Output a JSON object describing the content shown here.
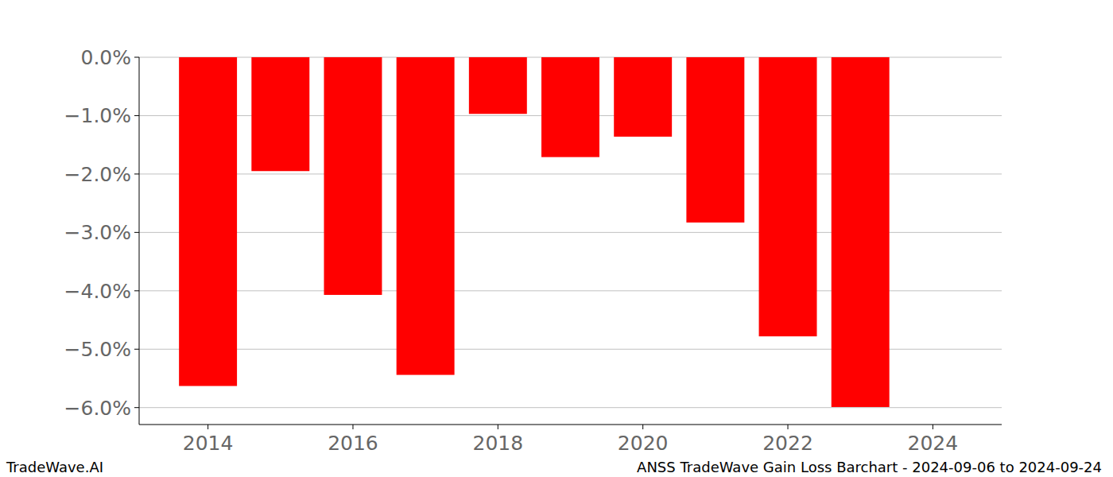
{
  "chart_data": {
    "type": "bar",
    "title": "ANSS TradeWave Gain Loss Barchart - 2024-09-06 to 2024-09-24",
    "source": "TradeWave.AI",
    "x": [
      2014,
      2015,
      2016,
      2017,
      2018,
      2019,
      2020,
      2021,
      2022,
      2023
    ],
    "values": [
      -5.63,
      -1.95,
      -4.07,
      -5.44,
      -0.97,
      -1.71,
      -1.36,
      -2.83,
      -4.78,
      -5.99
    ],
    "color": "#ff0000",
    "xlim": [
      2013.05,
      2024.95
    ],
    "xticks": [
      2014,
      2016,
      2018,
      2020,
      2022,
      2024
    ],
    "ylim": [
      -6.29,
      0
    ],
    "yticks": [
      {
        "value": 0,
        "label": "0.0%"
      },
      {
        "value": -1,
        "label": "−1.0%"
      },
      {
        "value": -2,
        "label": "−2.0%"
      },
      {
        "value": -3,
        "label": "−3.0%"
      },
      {
        "value": -4,
        "label": "−4.0%"
      },
      {
        "value": -5,
        "label": "−5.0%"
      },
      {
        "value": -6,
        "label": "−6.0%"
      }
    ],
    "grid": true
  }
}
